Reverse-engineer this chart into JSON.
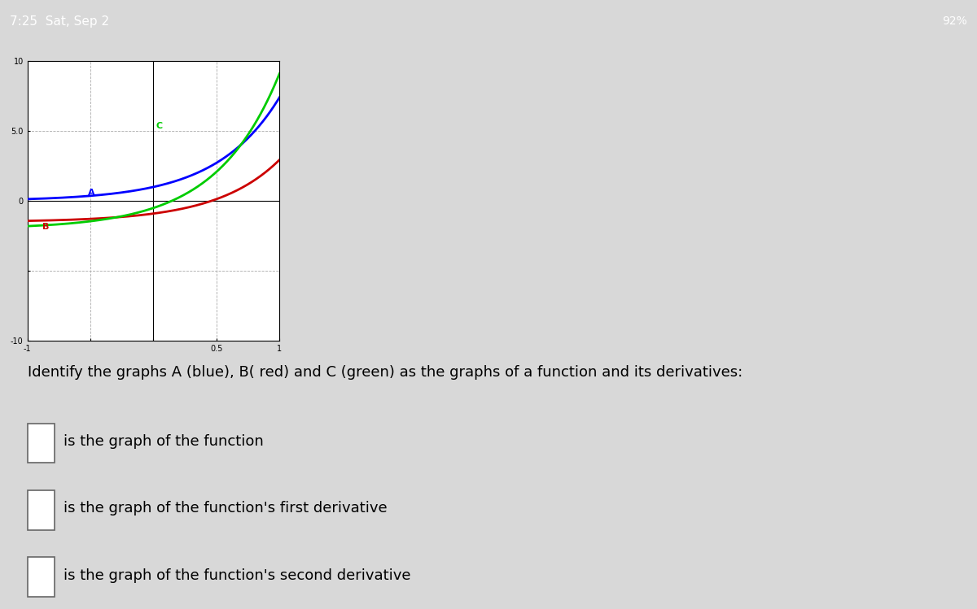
{
  "xlim": [
    -1,
    1
  ],
  "ylim": [
    -10,
    10
  ],
  "blue_color": "#0000ff",
  "red_color": "#cc0000",
  "green_color": "#00cc00",
  "label_A": "A",
  "label_B": "B",
  "label_C": "C",
  "question_text": "Identify the graphs A (blue), B( red) and C (green) as the graphs of a function and its derivatives:",
  "line1": "is the graph of the function",
  "line2": "is the graph of the function's first derivative",
  "line3": "is the graph of the function's second derivative",
  "bg_color": "#d8d8d8",
  "plot_bg": "#ffffff",
  "status_bar_color": "#1a1a1a",
  "status_text": "7:25  Sat, Sep 2",
  "battery_text": "92%"
}
